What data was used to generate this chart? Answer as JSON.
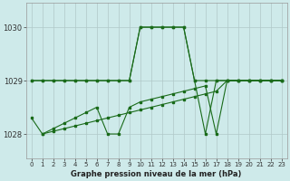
{
  "title": "Graphe pression niveau de la mer (hPa)",
  "bg_color": "#ceeaea",
  "grid_color": "#b0c8c8",
  "line_color": "#1a6b1a",
  "ylim": [
    1027.55,
    1030.45
  ],
  "xlim": [
    -0.5,
    23.5
  ],
  "yticks": [
    1028,
    1029,
    1030
  ],
  "xticks": [
    0,
    1,
    2,
    3,
    4,
    5,
    6,
    7,
    8,
    9,
    10,
    11,
    12,
    13,
    14,
    15,
    16,
    17,
    18,
    19,
    20,
    21,
    22,
    23
  ],
  "series1_x": [
    0,
    1,
    2,
    3,
    4,
    5,
    6,
    7,
    8,
    9,
    10,
    11,
    12,
    13,
    14,
    15,
    16,
    17,
    18,
    19,
    20,
    21,
    22,
    23
  ],
  "series1_y": [
    1029.0,
    1029.0,
    1029.0,
    1029.0,
    1029.0,
    1029.0,
    1029.0,
    1029.0,
    1029.0,
    1029.0,
    1030.0,
    1030.0,
    1030.0,
    1030.0,
    1030.0,
    1029.0,
    1029.0,
    1029.0,
    1029.0,
    1029.0,
    1029.0,
    1029.0,
    1029.0,
    1029.0
  ],
  "series2_x": [
    0,
    1,
    2,
    3,
    4,
    5,
    6,
    7,
    8,
    9,
    10,
    11,
    12,
    13,
    14,
    15,
    16,
    17,
    18,
    19,
    20,
    21,
    22,
    23
  ],
  "series2_y": [
    1029.0,
    1029.0,
    1029.0,
    1029.0,
    1029.0,
    1029.0,
    1029.0,
    1029.0,
    1029.0,
    1029.0,
    1030.0,
    1030.0,
    1030.0,
    1030.0,
    1030.0,
    1029.0,
    1028.0,
    1029.0,
    1029.0,
    1029.0,
    1029.0,
    1029.0,
    1029.0,
    1029.0
  ],
  "series3_x": [
    1,
    2,
    3,
    4,
    5,
    6,
    7,
    8,
    9,
    10,
    11,
    12,
    13,
    14,
    15,
    16,
    17,
    18,
    19,
    20,
    21,
    22,
    23
  ],
  "series3_y": [
    1028.0,
    1028.05,
    1028.1,
    1028.15,
    1028.2,
    1028.25,
    1028.3,
    1028.35,
    1028.4,
    1028.45,
    1028.5,
    1028.55,
    1028.6,
    1028.65,
    1028.7,
    1028.75,
    1028.8,
    1029.0,
    1029.0,
    1029.0,
    1029.0,
    1029.0,
    1029.0
  ],
  "series4_x": [
    0,
    1,
    2,
    3,
    4,
    5,
    6,
    7,
    8,
    9,
    10,
    11,
    12,
    13,
    14,
    15,
    16,
    17,
    18,
    19,
    20,
    21,
    22,
    23
  ],
  "series4_y": [
    1028.3,
    1028.0,
    1028.1,
    1028.2,
    1028.3,
    1028.4,
    1028.5,
    1028.0,
    1028.0,
    1028.5,
    1028.6,
    1028.65,
    1028.7,
    1028.75,
    1028.8,
    1028.85,
    1028.9,
    1028.0,
    1029.0,
    1029.0,
    1029.0,
    1029.0,
    1029.0,
    1029.0
  ]
}
